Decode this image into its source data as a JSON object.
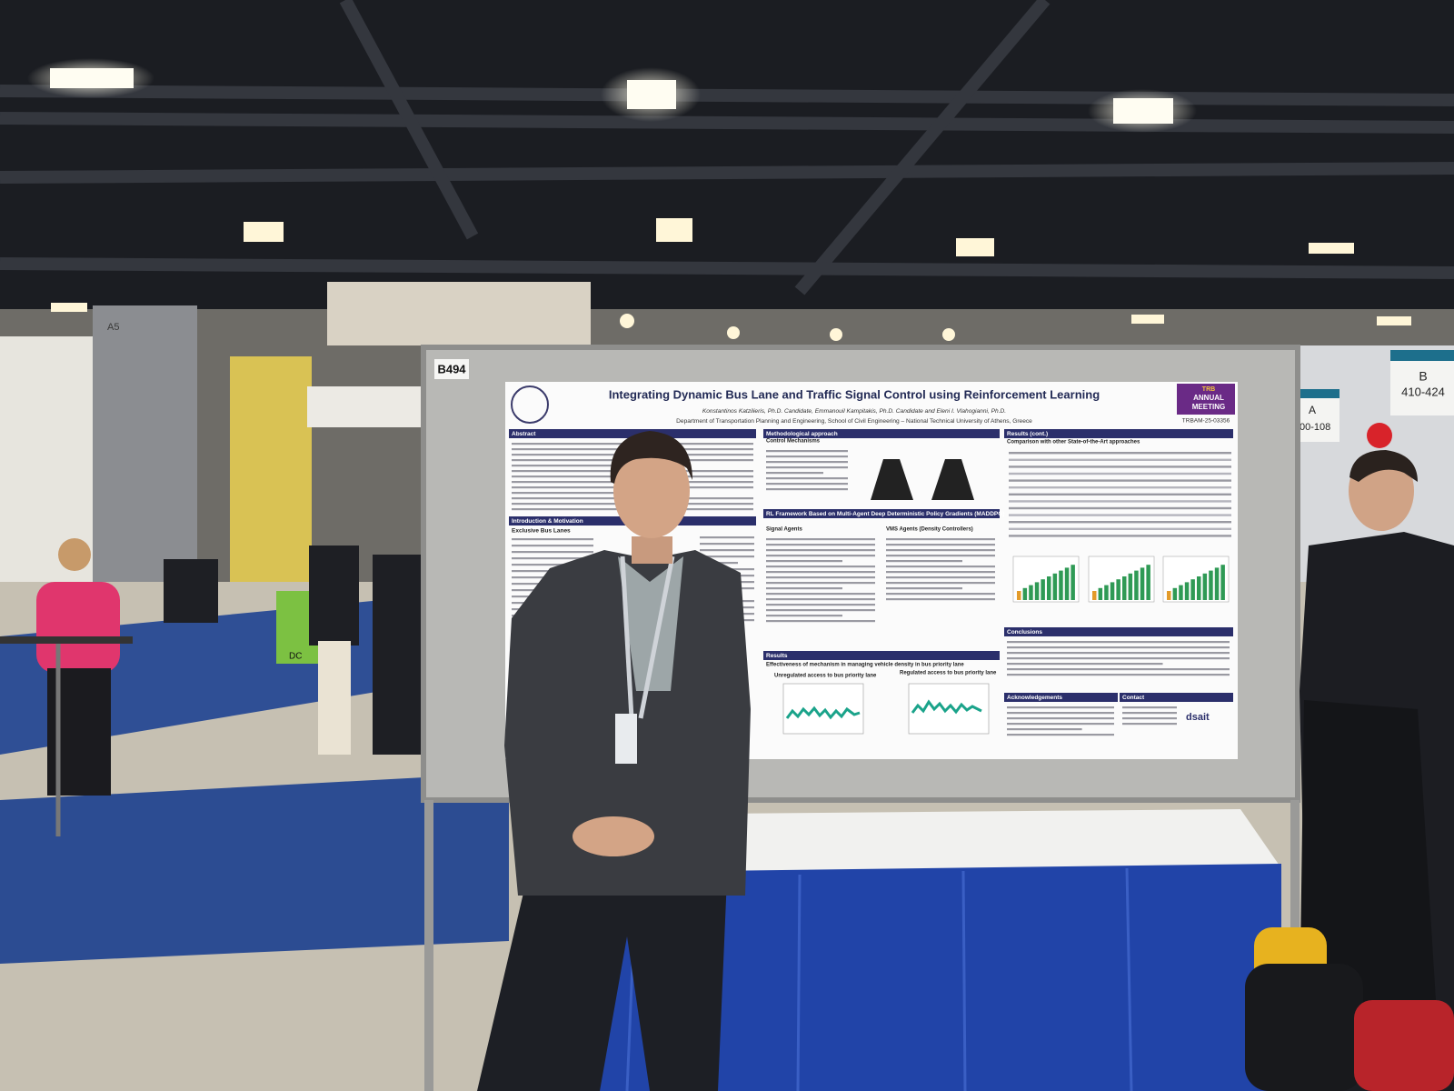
{
  "booth_number": "B494",
  "poster": {
    "title": "Integrating Dynamic Bus Lane and Traffic Signal Control using Reinforcement Learning",
    "authors": "Konstantinos Katzilieris, Ph.D. Candidate, Emmanouil Kampitakis, Ph.D. Candidate and Eleni I. Vlahogianni, Ph.D.",
    "affiliation": "Department of Transportation Planning and Engineering, School of Civil Engineering – National Technical University of Athens, Greece",
    "paper_id": "TRBAM-25-03356",
    "badge": [
      "TRB",
      "ANNUAL",
      "MEETING"
    ],
    "sections": {
      "abstract": "Abstract",
      "intro": "Introduction & Motivation",
      "method": "Methodological approach",
      "framework": "RL Framework Based on Multi-Agent Deep Deterministic Policy Gradients (MADDPG)",
      "results": "Results",
      "results_cont": "Results (cont.)",
      "conclusions": "Conclusions",
      "acknowledgements": "Acknowledgements",
      "contact": "Contact"
    },
    "subheadings": {
      "bus_lanes": "Exclusive Bus Lanes",
      "control": "Control Mechanisms",
      "signal_agents": "Signal Agents",
      "vms_agents": "VMS Agents (Density Controllers)",
      "effectiveness": "Effectiveness of mechanism in managing vehicle density in bus priority lane",
      "comparison": "Comparison with other State-of-the-Art approaches"
    },
    "plot_titles": [
      "Unregulated access to bus priority lane",
      "Regulated access to bus priority lane"
    ],
    "logo": "dsait"
  },
  "signs": {
    "hall_b": [
      "B",
      "410-424"
    ],
    "hall_a": [
      "A",
      "00-108"
    ],
    "column": "A5",
    "floor_sign": "DC"
  }
}
